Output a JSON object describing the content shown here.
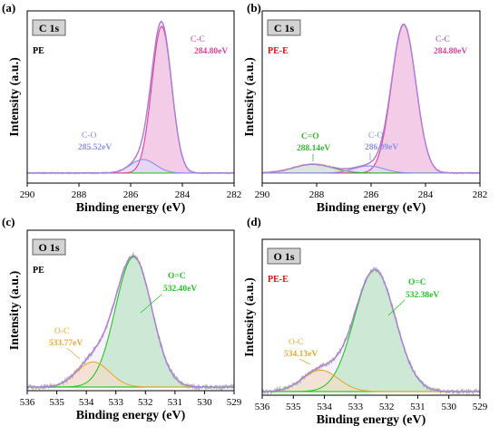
{
  "colors": {
    "envelope": "#b07be0",
    "envelope_fill": "#ead9f7",
    "raw": "#b8b8b8",
    "raw_alt": "#e8a098",
    "background": "#2ec82e",
    "c_c": "#e0409a",
    "c_c_fill": "#f6b3d6",
    "c_o": "#8e8ef0",
    "c_o_fill": "#d8d8fa",
    "c_eq_o": "#33b833",
    "c_eq_o_fill": "#bfe9bf",
    "o_eq_c": "#22c822",
    "o_eq_c_fill": "#a8ecb0",
    "o_c": "#e8a830",
    "o_c_fill": "#f6dfb0",
    "pe_label": "#000000",
    "pe_e_label": "#e01010"
  },
  "chart_data": [
    {
      "type": "line",
      "panel": "(a)",
      "tag": "C 1s",
      "sample": "PE",
      "xlabel": "Binding energy (eV)",
      "ylabel": "Intensity (a.u.)",
      "xlim": [
        290,
        282
      ],
      "xticks": [
        "290",
        "288",
        "286",
        "284",
        "282"
      ],
      "baseline": 0.04,
      "series": [
        {
          "name": "C-C",
          "role": "peak",
          "center": 284.8,
          "fwhm": 0.9,
          "height": 0.92,
          "label_value": "284.80eV"
        },
        {
          "name": "C-O",
          "role": "peak",
          "center": 285.52,
          "fwhm": 1.15,
          "height": 0.085,
          "label_value": "285.52eV"
        }
      ]
    },
    {
      "type": "line",
      "panel": "(b)",
      "tag": "C 1s",
      "sample": "PE-E",
      "xlabel": "Binding energy (eV)",
      "ylabel": "Intensity (a.u.)",
      "xlim": [
        290,
        282
      ],
      "xticks": [
        "290",
        "288",
        "286",
        "284",
        "282"
      ],
      "baseline": 0.04,
      "series": [
        {
          "name": "C-C",
          "role": "peak",
          "center": 284.8,
          "fwhm": 1.05,
          "height": 0.93,
          "label_value": "284.80eV"
        },
        {
          "name": "C=O",
          "role": "peak",
          "center": 288.14,
          "fwhm": 1.7,
          "height": 0.055,
          "label_value": "288.14eV"
        },
        {
          "name": "C-O",
          "role": "peak",
          "center": 286.09,
          "fwhm": 1.3,
          "height": 0.045,
          "label_value": "286.09eV"
        }
      ]
    },
    {
      "type": "line",
      "panel": "(c)",
      "tag": "O 1s",
      "sample": "PE",
      "xlabel": "Binding energy (eV)",
      "ylabel": "Intensity (a.u.)",
      "xlim": [
        536,
        529
      ],
      "xticks": [
        "536",
        "535",
        "534",
        "533",
        "532",
        "531",
        "530",
        "529"
      ],
      "baseline": 0.0,
      "series": [
        {
          "name": "O=C",
          "role": "peak",
          "center": 532.4,
          "fwhm": 1.45,
          "height": 0.88,
          "label_value": "532.40eV"
        },
        {
          "name": "O-C",
          "role": "peak",
          "center": 533.77,
          "fwhm": 1.3,
          "height": 0.17,
          "label_value": "533.77eV"
        }
      ]
    },
    {
      "type": "line",
      "panel": "(d)",
      "tag": "O 1s",
      "sample": "PE-E",
      "xlabel": "Binding energy (eV)",
      "ylabel": "Intensity (a.u.)",
      "xlim": [
        536,
        529
      ],
      "xticks": [
        "536",
        "535",
        "534",
        "533",
        "532",
        "531",
        "530",
        "529"
      ],
      "baseline": 0.0,
      "series": [
        {
          "name": "O=C",
          "role": "peak",
          "center": 532.38,
          "fwhm": 1.55,
          "height": 0.85,
          "label_value": "532.38eV"
        },
        {
          "name": "O-C",
          "role": "peak",
          "center": 534.13,
          "fwhm": 1.35,
          "height": 0.15,
          "label_value": "534.13eV"
        }
      ]
    }
  ]
}
